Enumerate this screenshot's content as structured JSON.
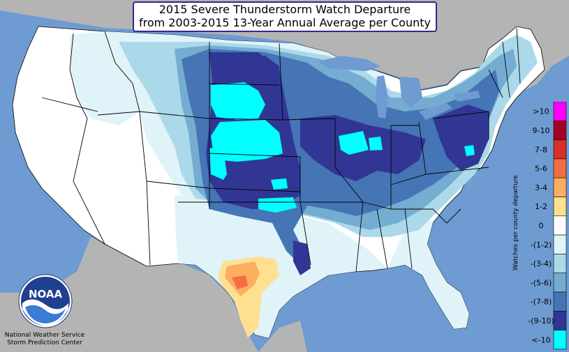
{
  "title_line1": "2015 Severe Thunderstorm Watch Departure",
  "title_line2": "from 2003-2015 13-Year Annual Average per County",
  "legend": {
    "axis_label": "Watches per county departure",
    "items": [
      {
        "label": ">10",
        "color": "#ff00ff"
      },
      {
        "label": "9-10",
        "color": "#a50026"
      },
      {
        "label": "7-8",
        "color": "#d73027"
      },
      {
        "label": "5-6",
        "color": "#f46d43"
      },
      {
        "label": "3-4",
        "color": "#fdae61"
      },
      {
        "label": "1-2",
        "color": "#fee090"
      },
      {
        "label": "0",
        "color": "#ffffff"
      },
      {
        "label": "-(1-2)",
        "color": "#e0f3f8"
      },
      {
        "label": "-(3-4)",
        "color": "#abd9e9"
      },
      {
        "label": "-(5-6)",
        "color": "#74add1"
      },
      {
        "label": "-(7-8)",
        "color": "#4575b4"
      },
      {
        "label": "-(9-10)",
        "color": "#313695"
      },
      {
        "label": "<-10",
        "color": "#00ffff"
      }
    ]
  },
  "logo_text": "NOAA",
  "credit_line1": "National Weather Service",
  "credit_line2": "Storm Prediction Center",
  "colors": {
    "ocean": "#6e9bd1",
    "land_outside": "#b4b4b4",
    "state_border": "#000000"
  }
}
